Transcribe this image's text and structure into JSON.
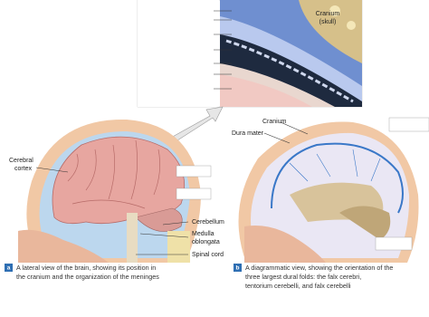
{
  "inset": {
    "label_lines": [
      "Cranium",
      "(skull)"
    ]
  },
  "panel_a": {
    "badge": "a",
    "labels": {
      "cerebral_cortex": [
        "Cerebral",
        "cortex"
      ],
      "cerebellum": "Cerebellum",
      "medulla_oblongata": [
        "Medulla",
        "oblongata"
      ],
      "spinal_cord": "Spinal cord"
    },
    "caption_lines": [
      "A lateral view of the brain, showing its position in",
      "the cranium and the organization of the meninges"
    ]
  },
  "panel_b": {
    "badge": "b",
    "labels": {
      "cranium": "Cranium",
      "dura_mater": "Dura mater"
    },
    "caption_lines": [
      "A diagrammatic view, showing the orientation of the",
      "three largest dural folds: the falx cerebri,",
      "tentorium cerebelli, and falx cerebelli"
    ]
  }
}
